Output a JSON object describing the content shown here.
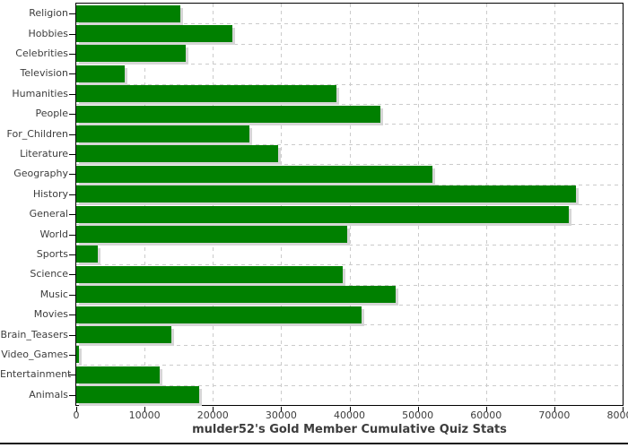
{
  "chart_data": {
    "type": "bar",
    "orientation": "horizontal",
    "title": "mulder52's Gold Member Cumulative Quiz Stats",
    "categories": [
      "Religion",
      "Hobbies",
      "Celebrities",
      "Television",
      "Humanities",
      "People",
      "For_Children",
      "Literature",
      "Geography",
      "History",
      "General",
      "World",
      "Sports",
      "Science",
      "Music",
      "Movies",
      "Brain_Teasers",
      "Video_Games",
      "Entertainment",
      "Animals"
    ],
    "values": [
      15200,
      22900,
      16000,
      7100,
      38100,
      44500,
      25400,
      29600,
      52200,
      73100,
      72100,
      39600,
      3200,
      39000,
      46800,
      41800,
      13900,
      400,
      12200,
      18000
    ],
    "xlim": [
      0,
      80000
    ],
    "x_ticks": [
      0,
      10000,
      20000,
      30000,
      40000,
      50000,
      60000,
      70000,
      80000
    ],
    "x_tick_labels": [
      "0",
      "10000",
      "20000",
      "30000",
      "40000",
      "50000",
      "60000",
      "70000",
      "80000"
    ],
    "grid": "dashed",
    "legend": "none",
    "bar_color": "#008000",
    "bar_shadow_color": "#d6d6d6",
    "gridline_color": "#cbcbcb",
    "axis_color": "#000000",
    "text_color": "#3d3d3d"
  }
}
